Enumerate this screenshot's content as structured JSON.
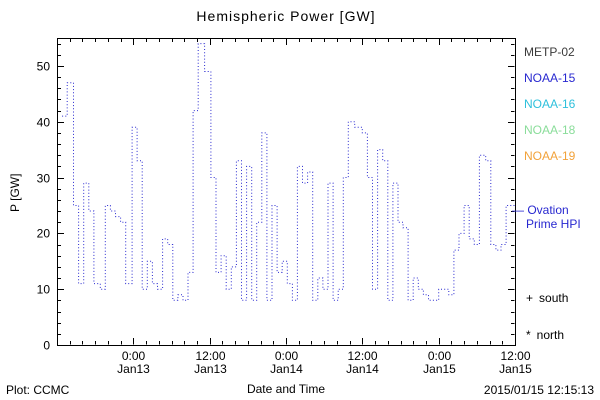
{
  "chart_data": {
    "type": "line",
    "style": "dotted-step",
    "title": "Hemispheric Power [GW]",
    "xlabel": "Date and Time",
    "ylabel": "P [GW]",
    "xlim": [
      0,
      72
    ],
    "x_unit_hours_start": "Jan12 12:00",
    "ylim": [
      0,
      55
    ],
    "yticks": [
      0,
      10,
      20,
      30,
      40,
      50
    ],
    "y_minor_step": 2,
    "x_minor_step": 2,
    "grid": false,
    "xticks": [
      {
        "t": 12,
        "time": "0:00",
        "date": "Jan13"
      },
      {
        "t": 24,
        "time": "12:00",
        "date": "Jan13"
      },
      {
        "t": 36,
        "time": "0:00",
        "date": "Jan14"
      },
      {
        "t": 48,
        "time": "12:00",
        "date": "Jan14"
      },
      {
        "t": 60,
        "time": "0:00",
        "date": "Jan15"
      },
      {
        "t": 72,
        "time": "12:00",
        "date": "Jan15"
      }
    ],
    "series": [
      {
        "name": "Hemispheric Power HPI",
        "color": "#2828d0",
        "points": [
          [
            0.8,
            41
          ],
          [
            1.6,
            47
          ],
          [
            2.6,
            25
          ],
          [
            3.4,
            11
          ],
          [
            4.2,
            29
          ],
          [
            5,
            24
          ],
          [
            5.8,
            11
          ],
          [
            6.8,
            10
          ],
          [
            7.6,
            25
          ],
          [
            8.4,
            24
          ],
          [
            9.2,
            23
          ],
          [
            10,
            22
          ],
          [
            10.8,
            11
          ],
          [
            11.8,
            39
          ],
          [
            12.6,
            33
          ],
          [
            13.4,
            10
          ],
          [
            14.2,
            15
          ],
          [
            15,
            11
          ],
          [
            15.8,
            10
          ],
          [
            16.6,
            19
          ],
          [
            17.4,
            18
          ],
          [
            18.2,
            8
          ],
          [
            19,
            9
          ],
          [
            19.8,
            8
          ],
          [
            20.6,
            13
          ],
          [
            21.4,
            42
          ],
          [
            22.2,
            54
          ],
          [
            23.2,
            49
          ],
          [
            24.2,
            30
          ],
          [
            25,
            13
          ],
          [
            25.8,
            16
          ],
          [
            26.6,
            10
          ],
          [
            27.4,
            14
          ],
          [
            28.2,
            33
          ],
          [
            29,
            8
          ],
          [
            29.8,
            32
          ],
          [
            30.6,
            8
          ],
          [
            31.4,
            22
          ],
          [
            32.2,
            38
          ],
          [
            33,
            8
          ],
          [
            33.8,
            25
          ],
          [
            34.6,
            13
          ],
          [
            35.4,
            15
          ],
          [
            36.2,
            11
          ],
          [
            37,
            8
          ],
          [
            37.8,
            32
          ],
          [
            38.6,
            29
          ],
          [
            39.4,
            31
          ],
          [
            40.2,
            8
          ],
          [
            41,
            12
          ],
          [
            41.8,
            10
          ],
          [
            42.6,
            29
          ],
          [
            43.4,
            8
          ],
          [
            44.2,
            10
          ],
          [
            45,
            30
          ],
          [
            45.8,
            40
          ],
          [
            46.8,
            39
          ],
          [
            48,
            38
          ],
          [
            48.8,
            30
          ],
          [
            49.6,
            10
          ],
          [
            50.4,
            35
          ],
          [
            51.2,
            33
          ],
          [
            52,
            8
          ],
          [
            52.8,
            29
          ],
          [
            53.6,
            22
          ],
          [
            54.4,
            21
          ],
          [
            55.2,
            8
          ],
          [
            56,
            12
          ],
          [
            56.8,
            10
          ],
          [
            57.6,
            9
          ],
          [
            58.4,
            8
          ],
          [
            59.2,
            8
          ],
          [
            60,
            10
          ],
          [
            60.8,
            10
          ],
          [
            61.6,
            9
          ],
          [
            62.4,
            17
          ],
          [
            63.2,
            20
          ],
          [
            64,
            25
          ],
          [
            64.8,
            19
          ],
          [
            65.6,
            18
          ],
          [
            66.4,
            34
          ],
          [
            67.4,
            33
          ],
          [
            68.2,
            18
          ],
          [
            69,
            17
          ],
          [
            69.8,
            18
          ],
          [
            70.6,
            25
          ],
          [
            71.4,
            25
          ]
        ]
      }
    ]
  },
  "legend": {
    "satellites": [
      {
        "name": "METP-02",
        "color": "#3a3a3a"
      },
      {
        "name": "NOAA-15",
        "color": "#2828d0"
      },
      {
        "name": "NOAA-16",
        "color": "#2ec0dc"
      },
      {
        "name": "NOAA-18",
        "color": "#8add9a"
      },
      {
        "name": "NOAA-19",
        "color": "#f2a23a"
      }
    ]
  },
  "ovation": {
    "dash": "—",
    "line1": "Ovation",
    "line2": "Prime HPI",
    "color": "#2828d0"
  },
  "markers": [
    {
      "symbol": "+",
      "label": "south"
    },
    {
      "symbol": "*",
      "label": "north"
    }
  ],
  "footer": {
    "credit": "Plot: CCMC",
    "timestamp": "2015/01/15 12:15:13"
  }
}
